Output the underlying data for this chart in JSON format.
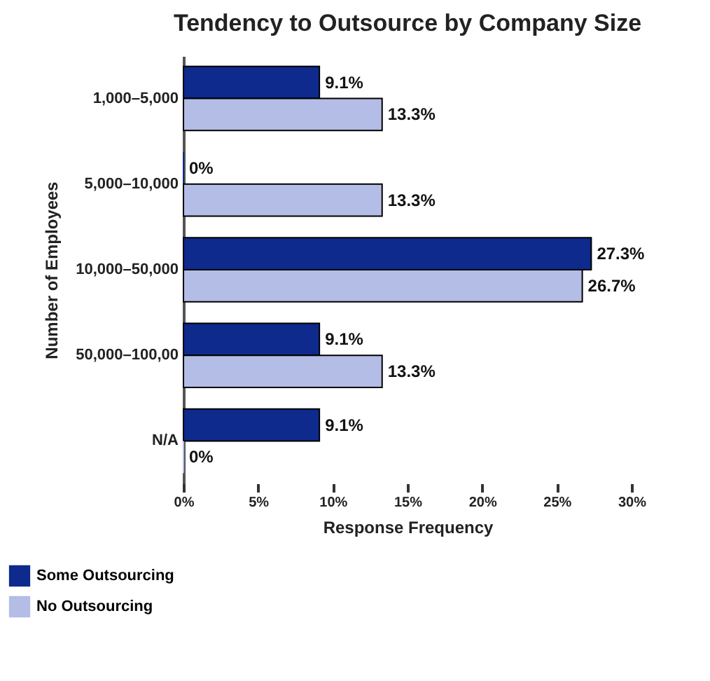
{
  "chart_data": {
    "type": "bar",
    "orientation": "horizontal",
    "title": "Tendency to Outsource by Company Size",
    "xlabel": "Response Frequency",
    "ylabel": "Number of Employees",
    "categories": [
      "1,000–5,000",
      "5,000–10,000",
      "10,000–50,000",
      "50,000–100,00",
      "N/A"
    ],
    "series": [
      {
        "name": "Some Outsourcing",
        "color": "#0d2a8c",
        "values": [
          9.1,
          0,
          27.3,
          9.1,
          9.1
        ],
        "value_labels": [
          "9.1%",
          "0%",
          "27.3%",
          "9.1%",
          "9.1%"
        ]
      },
      {
        "name": "No Outsourcing",
        "color": "#b3bde6",
        "values": [
          13.3,
          13.3,
          26.7,
          13.3,
          0
        ],
        "value_labels": [
          "13.3%",
          "13.3%",
          "26.7%",
          "13.3%",
          "0%"
        ]
      }
    ],
    "xlim": [
      0,
      30
    ],
    "xticks": [
      {
        "value": 0,
        "label": "0%"
      },
      {
        "value": 5,
        "label": "5%"
      },
      {
        "value": 10,
        "label": "10%"
      },
      {
        "value": 15,
        "label": "15%"
      },
      {
        "value": 20,
        "label": "20%"
      },
      {
        "value": 25,
        "label": "25%"
      },
      {
        "value": 30,
        "label": "30%"
      }
    ],
    "grid": false,
    "legend": "bottom left"
  }
}
